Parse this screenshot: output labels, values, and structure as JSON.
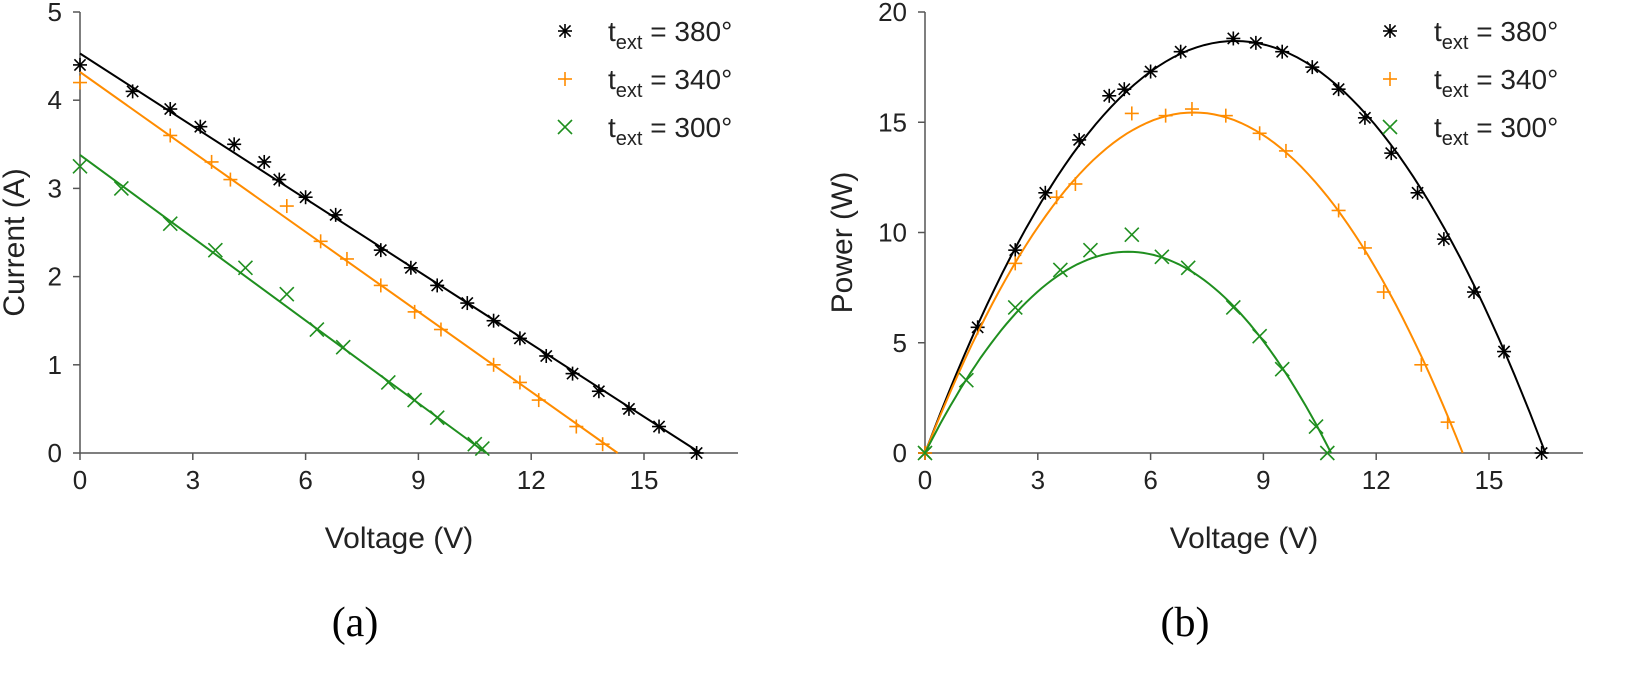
{
  "colors": {
    "380": "#000000",
    "340": "#ff8c00",
    "300": "#1f8f1f",
    "axis": "#555555"
  },
  "chart_data": [
    {
      "id": "a",
      "type": "line+scatter",
      "panel_label": "(a)",
      "xlabel": "Voltage (V)",
      "ylabel": "Current (A)",
      "xlim": [
        0,
        17.5
      ],
      "ylim": [
        0,
        5
      ],
      "xticks": [
        0,
        3,
        6,
        9,
        12,
        15
      ],
      "yticks": [
        0,
        1,
        2,
        3,
        4,
        5
      ],
      "legend_position": "top-right",
      "series": [
        {
          "key": "380",
          "name": "t_ext = 380°",
          "legend_main": "t",
          "legend_sub": "ext",
          "legend_rest": " = 380°",
          "marker": "asterisk",
          "fit": {
            "kind": "linear",
            "x": [
              0,
              16.5
            ],
            "y": [
              4.53,
              0
            ]
          },
          "points": [
            [
              0,
              4.4
            ],
            [
              1.4,
              4.1
            ],
            [
              2.4,
              3.9
            ],
            [
              3.2,
              3.7
            ],
            [
              4.1,
              3.5
            ],
            [
              4.9,
              3.3
            ],
            [
              5.3,
              3.1
            ],
            [
              6.0,
              2.9
            ],
            [
              6.8,
              2.7
            ],
            [
              8.0,
              2.3
            ],
            [
              8.8,
              2.1
            ],
            [
              9.5,
              1.9
            ],
            [
              10.3,
              1.7
            ],
            [
              11.0,
              1.5
            ],
            [
              11.7,
              1.3
            ],
            [
              12.4,
              1.1
            ],
            [
              13.1,
              0.9
            ],
            [
              13.8,
              0.7
            ],
            [
              14.6,
              0.5
            ],
            [
              15.4,
              0.3
            ],
            [
              16.4,
              0.0
            ]
          ]
        },
        {
          "key": "340",
          "name": "t_ext = 340°",
          "legend_main": "t",
          "legend_sub": "ext",
          "legend_rest": " = 340°",
          "marker": "plus",
          "fit": {
            "kind": "linear",
            "x": [
              0,
              14.3
            ],
            "y": [
              4.32,
              0
            ]
          },
          "points": [
            [
              0,
              4.2
            ],
            [
              2.4,
              3.6
            ],
            [
              3.5,
              3.3
            ],
            [
              4.0,
              3.1
            ],
            [
              5.5,
              2.8
            ],
            [
              6.4,
              2.4
            ],
            [
              7.1,
              2.2
            ],
            [
              8.0,
              1.9
            ],
            [
              8.9,
              1.6
            ],
            [
              9.6,
              1.4
            ],
            [
              11.0,
              1.0
            ],
            [
              11.7,
              0.8
            ],
            [
              12.2,
              0.6
            ],
            [
              13.2,
              0.3
            ],
            [
              13.9,
              0.1
            ]
          ]
        },
        {
          "key": "300",
          "name": "t_ext = 300°",
          "legend_main": "t",
          "legend_sub": "ext",
          "legend_rest": " = 300°",
          "marker": "cross",
          "fit": {
            "kind": "linear",
            "x": [
              0,
              10.8
            ],
            "y": [
              3.38,
              0
            ]
          },
          "points": [
            [
              0,
              3.25
            ],
            [
              1.1,
              3.0
            ],
            [
              2.4,
              2.6
            ],
            [
              3.6,
              2.3
            ],
            [
              4.4,
              2.1
            ],
            [
              5.5,
              1.8
            ],
            [
              6.3,
              1.4
            ],
            [
              7.0,
              1.2
            ],
            [
              8.2,
              0.8
            ],
            [
              8.9,
              0.6
            ],
            [
              9.5,
              0.4
            ],
            [
              10.5,
              0.1
            ],
            [
              10.7,
              0.05
            ]
          ]
        }
      ]
    },
    {
      "id": "b",
      "type": "line+scatter",
      "panel_label": "(b)",
      "xlabel": "Voltage (V)",
      "ylabel": "Power (W)",
      "xlim": [
        0,
        17.5
      ],
      "ylim": [
        0,
        20
      ],
      "xticks": [
        0,
        3,
        6,
        9,
        12,
        15
      ],
      "yticks": [
        0,
        5,
        10,
        15,
        20
      ],
      "legend_position": "top-right",
      "series": [
        {
          "key": "380",
          "name": "t_ext = 380°",
          "legend_main": "t",
          "legend_sub": "ext",
          "legend_rest": " = 380°",
          "marker": "asterisk",
          "fit": {
            "kind": "power",
            "a": 4.53,
            "voc": 16.5
          },
          "points": [
            [
              0,
              0
            ],
            [
              1.4,
              5.7
            ],
            [
              2.4,
              9.2
            ],
            [
              3.2,
              11.8
            ],
            [
              4.1,
              14.2
            ],
            [
              4.9,
              16.2
            ],
            [
              5.3,
              16.5
            ],
            [
              6.0,
              17.3
            ],
            [
              6.8,
              18.2
            ],
            [
              8.2,
              18.8
            ],
            [
              8.8,
              18.6
            ],
            [
              9.5,
              18.2
            ],
            [
              10.3,
              17.5
            ],
            [
              11.0,
              16.5
            ],
            [
              11.7,
              15.2
            ],
            [
              12.4,
              13.6
            ],
            [
              13.1,
              11.8
            ],
            [
              13.8,
              9.7
            ],
            [
              14.6,
              7.3
            ],
            [
              15.4,
              4.6
            ],
            [
              16.4,
              0
            ]
          ]
        },
        {
          "key": "340",
          "name": "t_ext = 340°",
          "legend_main": "t",
          "legend_sub": "ext",
          "legend_rest": " = 340°",
          "marker": "plus",
          "fit": {
            "kind": "power",
            "a": 4.32,
            "voc": 14.3
          },
          "points": [
            [
              0,
              0
            ],
            [
              2.4,
              8.6
            ],
            [
              3.5,
              11.6
            ],
            [
              4.0,
              12.2
            ],
            [
              5.5,
              15.4
            ],
            [
              6.4,
              15.3
            ],
            [
              7.1,
              15.6
            ],
            [
              8.0,
              15.3
            ],
            [
              8.9,
              14.5
            ],
            [
              9.6,
              13.7
            ],
            [
              11.0,
              11.0
            ],
            [
              11.7,
              9.3
            ],
            [
              12.2,
              7.3
            ],
            [
              13.2,
              4.0
            ],
            [
              13.9,
              1.4
            ]
          ]
        },
        {
          "key": "300",
          "name": "t_ext = 300°",
          "legend_main": "t",
          "legend_sub": "ext",
          "legend_rest": " = 300°",
          "marker": "cross",
          "fit": {
            "kind": "power",
            "a": 3.38,
            "voc": 10.8
          },
          "points": [
            [
              0,
              0
            ],
            [
              1.1,
              3.3
            ],
            [
              2.4,
              6.6
            ],
            [
              3.6,
              8.3
            ],
            [
              4.4,
              9.2
            ],
            [
              5.5,
              9.9
            ],
            [
              6.3,
              8.9
            ],
            [
              7.0,
              8.4
            ],
            [
              8.2,
              6.6
            ],
            [
              8.9,
              5.3
            ],
            [
              9.5,
              3.8
            ],
            [
              10.4,
              1.2
            ],
            [
              10.7,
              0
            ]
          ]
        }
      ]
    }
  ]
}
